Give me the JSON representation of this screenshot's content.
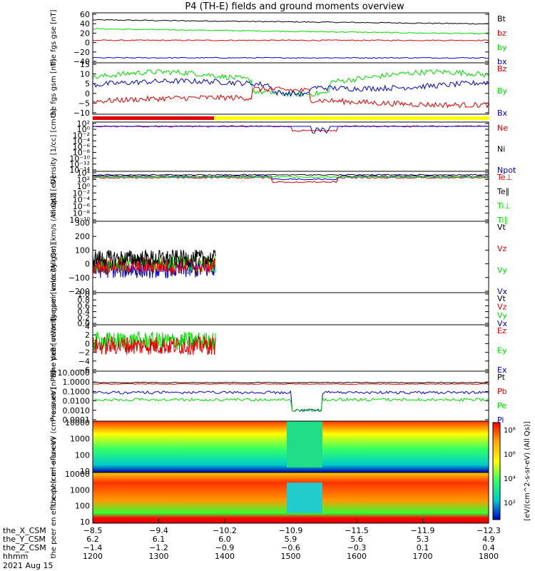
{
  "title": "P4 (TH-E) fields and ground moments overview",
  "date_label": "2021 Aug 15",
  "colors": {
    "black": "#000000",
    "red": "#e00000",
    "green": "#00dd00",
    "blue": "#0000cc",
    "yellow": "#ffff00"
  },
  "chart_data": [
    {
      "type": "line",
      "ylabel": "the fgs gse [nT]",
      "ylim": [
        -40,
        60
      ],
      "yticks": [
        "60",
        "40",
        "20",
        "0",
        "−20",
        "−40"
      ],
      "legend": [
        {
          "name": "Bt",
          "color": "black"
        },
        {
          "name": "bz",
          "color": "red"
        },
        {
          "name": "by",
          "color": "green"
        },
        {
          "name": "bx",
          "color": "blue"
        }
      ],
      "series": [
        {
          "name": "Bt",
          "level": 46
        },
        {
          "name": "bz",
          "level": 5
        },
        {
          "name": "by",
          "level": 28
        },
        {
          "name": "bx",
          "level": -30
        }
      ]
    },
    {
      "type": "line",
      "ylabel": "the fgs gsm [nT]",
      "ylim": [
        -13,
        15
      ],
      "yticks": [
        "15",
        "10",
        "5",
        "0",
        "−5",
        "−10"
      ],
      "legend": [
        {
          "name": "Bz",
          "color": "red"
        },
        {
          "name": "By",
          "color": "green"
        },
        {
          "name": "Bx",
          "color": "blue"
        }
      ],
      "series": [
        {
          "name": "Bz",
          "level": -6
        },
        {
          "name": "By",
          "level": 7
        },
        {
          "name": "Bx",
          "level": 3
        }
      ]
    },
    {
      "type": "line",
      "ylabel": "Density [1/cc] [cm-3]",
      "yticks": [
        "10²",
        "10⁰",
        "10⁻²",
        "10⁻⁴",
        "10⁻⁶",
        "10⁻⁸",
        "10⁻¹⁰",
        "10⁻¹²",
        "10⁻¹⁴"
      ],
      "legend": [
        {
          "name": "Ne",
          "color": "red"
        },
        {
          "name": "Ni",
          "color": "black"
        },
        {
          "name": "Npot",
          "color": "blue"
        }
      ]
    },
    {
      "type": "line",
      "ylabel": "moqt3 [eV]",
      "yticks": [
        "10⁴",
        "10²",
        "10⁰",
        "10⁻²",
        "10⁻⁴",
        "10⁻⁶",
        "10⁻⁸",
        "10⁻¹⁰"
      ],
      "legend": [
        {
          "name": "Te⊥",
          "color": "red"
        },
        {
          "name": "Te∥",
          "color": "black"
        },
        {
          "name": "Ti⊥",
          "color": "green"
        },
        {
          "name": "Ti∥",
          "color": "green"
        }
      ]
    },
    {
      "type": "line",
      "ylabel": "the peir velocity gsm [km/s (All Qs)]",
      "ylim": [
        -200,
        300
      ],
      "yticks": [
        "300",
        "200",
        "100",
        "0",
        "−100",
        "−200"
      ],
      "legend": [
        {
          "name": "Vt",
          "color": "black"
        },
        {
          "name": "Vz",
          "color": "red"
        },
        {
          "name": "Vy",
          "color": "green"
        },
        {
          "name": "Vx",
          "color": "blue"
        }
      ]
    },
    {
      "type": "line",
      "ylabel": "the peer velocity gsm [km/s (All Qs)]",
      "ylim": [
        0,
        1
      ],
      "yticks": [
        "1.0",
        "0.8",
        "0.6",
        "0.4",
        "0.2",
        "0.0"
      ],
      "legend": [
        {
          "name": "Vt",
          "color": "black"
        },
        {
          "name": "Vz",
          "color": "red"
        },
        {
          "name": "Vy",
          "color": "green"
        },
        {
          "name": "Vx",
          "color": "blue"
        }
      ]
    },
    {
      "type": "line",
      "ylabel": "E=−VxB [mV/m]",
      "ylim": [
        -6,
        4
      ],
      "yticks": [
        "4",
        "2",
        "0",
        "−2",
        "−4",
        "−6"
      ],
      "legend": [
        {
          "name": "Ez",
          "color": "red"
        },
        {
          "name": "Ey",
          "color": "green"
        },
        {
          "name": "Ex",
          "color": "blue"
        }
      ]
    },
    {
      "type": "line",
      "ylabel": "Pressure [nPa]",
      "yticks": [
        "10.0000",
        "1.0000",
        "0.1000",
        "0.0100",
        "0.0010",
        "0.0001"
      ],
      "legend": [
        {
          "name": "Pt",
          "color": "black"
        },
        {
          "name": "Pb",
          "color": "red"
        },
        {
          "name": "Pe",
          "color": "green"
        },
        {
          "name": "Pi",
          "color": "blue"
        }
      ]
    },
    {
      "type": "heatmap",
      "ylabel": "the peir en eflux eV (cm²-s-sr-eV)",
      "yticks": [
        "10000",
        "1000",
        "100",
        "10"
      ]
    },
    {
      "type": "heatmap",
      "ylabel": "the peer en eflux eV (cm²-s-sr-eV)",
      "yticks": [
        "10000",
        "1000",
        "100",
        "10"
      ]
    }
  ],
  "colorbar": {
    "label": "[eV/(cm^2-s-sr-eV) (All Qs)]",
    "ticks": [
      "10⁸",
      "10⁶",
      "10⁴",
      "10²"
    ]
  },
  "xaxis": {
    "hhmm": [
      "1200",
      "1300",
      "1400",
      "1500",
      "1600",
      "1700",
      "1800"
    ],
    "rows": [
      {
        "label": "the_X_CSM",
        "values": [
          "−8.5",
          "−9.4",
          "−10.2",
          "−10.9",
          "−11.5",
          "−11.9",
          "−12.3"
        ]
      },
      {
        "label": "the_Y_CSM",
        "values": [
          "6.2",
          "6.1",
          "6.0",
          "5.9",
          "5.6",
          "5.3",
          "4.9"
        ]
      },
      {
        "label": "the_Z_CSM",
        "values": [
          "−1.4",
          "−1.2",
          "−0.9",
          "−0.6",
          "−0.3",
          "0.1",
          "0.4"
        ]
      },
      {
        "label": "hhmm",
        "values": [
          "1200",
          "1300",
          "1400",
          "1500",
          "1600",
          "1700",
          "1800"
        ]
      }
    ]
  }
}
